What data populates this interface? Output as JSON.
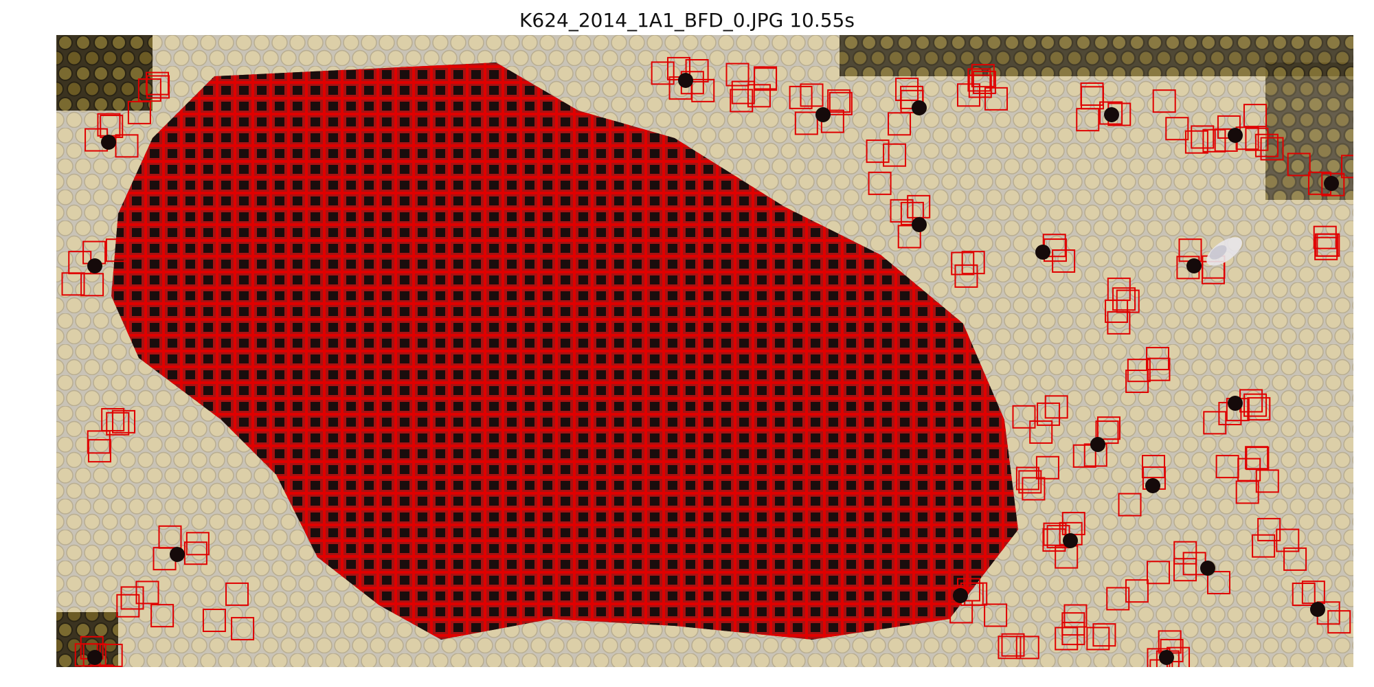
{
  "figure": {
    "title": "K624_2014_1A1_BFD_0.JPG 10.55s"
  },
  "image": {
    "subject": "honeycomb frame with detected cells",
    "colors": {
      "capped_cell": "#d9cba4",
      "capped_cell_shadow": "#b9ae8e",
      "comb_background": "#c7c2b6",
      "brood_fill": "#b01010",
      "open_cell": "#1a0f0f",
      "detection_box": "#e00000",
      "honey_cell": "#6b5a24"
    }
  }
}
